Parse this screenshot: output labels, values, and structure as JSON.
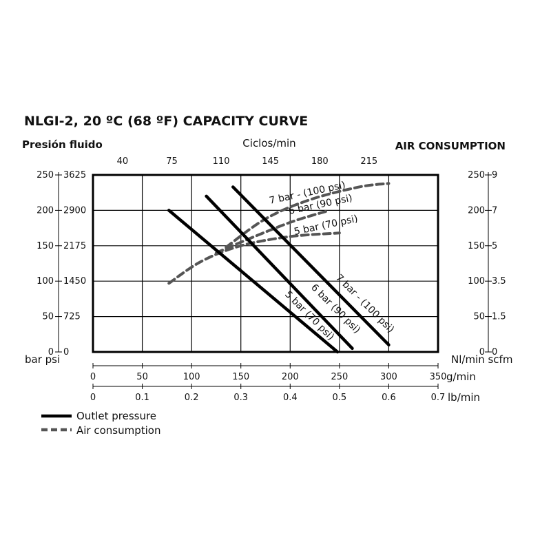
{
  "chart_data": {
    "type": "line",
    "title": "NLGI-2, 20 ºC (68 ºF) CAPACITY CURVE",
    "left_axis": {
      "title": "Presión fluido",
      "unit_label": "bar psi",
      "ticks_bar": [
        "250",
        "200",
        "150",
        "100",
        "50",
        "0"
      ],
      "ticks_psi": [
        "3625",
        "2900",
        "2175",
        "1450",
        "725",
        "0"
      ],
      "range": [
        0,
        250
      ]
    },
    "right_axis": {
      "title": "AIR CONSUMPTION",
      "unit_label": "Nl/min scfm",
      "ticks_nl": [
        "250",
        "200",
        "150",
        "100",
        "50",
        "0"
      ],
      "ticks_scfm": [
        "9",
        "7",
        "5",
        "3.5",
        "1.5",
        "0"
      ],
      "range": [
        0,
        250
      ]
    },
    "top_axis": {
      "title": "Ciclos/min",
      "ticks": [
        {
          "value": 40,
          "label": "40"
        },
        {
          "value": 75,
          "label": "75"
        },
        {
          "value": 110,
          "label": "110"
        },
        {
          "value": 145,
          "label": "145"
        },
        {
          "value": 180,
          "label": "180"
        },
        {
          "value": 215,
          "label": "215"
        }
      ]
    },
    "bottom_axis_gmin": {
      "unit": "g/min",
      "range": [
        0,
        350
      ],
      "ticks": [
        {
          "value": 0,
          "label": "0"
        },
        {
          "value": 50,
          "label": "50"
        },
        {
          "value": 100,
          "label": "100"
        },
        {
          "value": 150,
          "label": "150"
        },
        {
          "value": 200,
          "label": "200"
        },
        {
          "value": 250,
          "label": "250"
        },
        {
          "value": 300,
          "label": "300"
        },
        {
          "value": 350,
          "label": "350"
        }
      ]
    },
    "bottom_axis_lbmin": {
      "unit": "lb/min",
      "range": [
        0,
        0.7
      ],
      "ticks": [
        {
          "value": 0,
          "label": "0"
        },
        {
          "value": 0.1,
          "label": "0.1"
        },
        {
          "value": 0.2,
          "label": "0.2"
        },
        {
          "value": 0.3,
          "label": "0.3"
        },
        {
          "value": 0.4,
          "label": "0.4"
        },
        {
          "value": 0.5,
          "label": "0.5"
        },
        {
          "value": 0.6,
          "label": "0.6"
        },
        {
          "value": 0.7,
          "label": "0.7"
        }
      ]
    },
    "grid": true,
    "outlet_pressure": [
      {
        "label": "5 bar (70 psi)",
        "points": [
          [
            77,
            200
          ],
          [
            248,
            0
          ]
        ]
      },
      {
        "label": "6 bar (90 psi)",
        "points": [
          [
            115,
            220
          ],
          [
            263,
            5
          ]
        ]
      },
      {
        "label": "7 bar - (100 psi)",
        "points": [
          [
            142,
            233
          ],
          [
            300,
            10
          ]
        ]
      }
    ],
    "air_consumption": [
      {
        "label": "5 bar (70 psi)",
        "points": [
          [
            77,
            97
          ],
          [
            110,
            128
          ],
          [
            150,
            150
          ],
          [
            200,
            163
          ],
          [
            250,
            168
          ]
        ]
      },
      {
        "label": "6 bar (90 psi)",
        "points": [
          [
            125,
            140
          ],
          [
            150,
            155
          ],
          [
            200,
            183
          ],
          [
            240,
            200
          ]
        ]
      },
      {
        "label": "7 bar - (100 psi)",
        "points": [
          [
            135,
            148
          ],
          [
            175,
            188
          ],
          [
            220,
            215
          ],
          [
            270,
            233
          ],
          [
            300,
            238
          ]
        ]
      }
    ],
    "legend": [
      {
        "label": "Outlet pressure",
        "style": "solid"
      },
      {
        "label": "Air consumption",
        "style": "dashed"
      }
    ],
    "colors": {
      "outlet": "#000000",
      "air": "#555555",
      "grid": "#000000"
    }
  }
}
